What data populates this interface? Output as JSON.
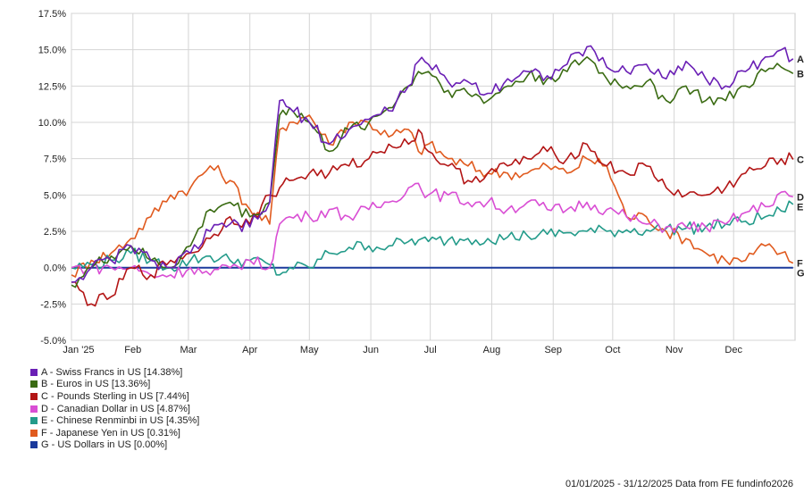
{
  "chart_data": {
    "type": "line",
    "y_ticks": [
      "17.5%",
      "15.0%",
      "12.5%",
      "10.0%",
      "7.5%",
      "5.0%",
      "2.5%",
      "0.0%",
      "-2.5%",
      "-5.0%"
    ],
    "ylim": [
      -5,
      17.5
    ],
    "x_ticks": [
      "Jan '25",
      "Feb",
      "Mar",
      "Apr",
      "May",
      "Jun",
      "Jul",
      "Aug",
      "Sep",
      "Oct",
      "Nov",
      "Dec"
    ],
    "xlim": [
      0,
      365
    ],
    "grid": true,
    "series": [
      {
        "code": "A",
        "name": "A - Swiss Francs in US [14.38%]",
        "color": "#6a1fb5",
        "x": [
          0,
          10,
          20,
          30,
          40,
          50,
          60,
          70,
          80,
          90,
          100,
          105,
          110,
          120,
          130,
          140,
          150,
          160,
          170,
          175,
          180,
          190,
          200,
          210,
          220,
          230,
          240,
          250,
          260,
          270,
          280,
          290,
          300,
          310,
          320,
          330,
          340,
          350,
          358,
          364
        ],
        "values": [
          -1.0,
          0.0,
          0.5,
          1.5,
          0.5,
          0.0,
          1.0,
          2.5,
          3.0,
          2.8,
          4.5,
          11.5,
          11.0,
          10.0,
          8.5,
          9.5,
          10.2,
          10.8,
          12.5,
          14.2,
          14.0,
          12.8,
          12.8,
          12.0,
          13.0,
          13.5,
          13.2,
          14.0,
          15.2,
          13.8,
          13.5,
          14.0,
          13.0,
          14.2,
          13.0,
          12.5,
          13.5,
          14.5,
          15.0,
          14.38
        ]
      },
      {
        "code": "B",
        "name": "B - Euros in US [13.36%]",
        "color": "#3a6b12",
        "x": [
          0,
          10,
          20,
          30,
          40,
          50,
          60,
          70,
          80,
          90,
          100,
          105,
          110,
          120,
          130,
          140,
          150,
          160,
          170,
          175,
          180,
          190,
          200,
          210,
          220,
          230,
          240,
          250,
          260,
          270,
          280,
          290,
          300,
          310,
          320,
          330,
          340,
          350,
          358,
          364
        ],
        "values": [
          -1.2,
          0.0,
          0.8,
          1.5,
          0.5,
          0.0,
          1.5,
          4.0,
          4.5,
          3.5,
          4.5,
          10.5,
          11.0,
          10.0,
          8.0,
          9.5,
          10.0,
          11.0,
          12.5,
          13.5,
          13.5,
          12.2,
          12.0,
          11.5,
          12.5,
          13.2,
          13.0,
          13.5,
          14.5,
          13.0,
          12.5,
          12.8,
          11.5,
          12.5,
          11.5,
          11.5,
          12.5,
          13.5,
          13.8,
          13.36
        ]
      },
      {
        "code": "C",
        "name": "C - Pounds Sterling in US [7.44%]",
        "color": "#b31515",
        "x": [
          0,
          10,
          20,
          30,
          40,
          50,
          60,
          70,
          80,
          90,
          100,
          105,
          110,
          120,
          130,
          140,
          150,
          160,
          170,
          175,
          180,
          190,
          200,
          210,
          220,
          230,
          240,
          250,
          260,
          270,
          280,
          290,
          300,
          310,
          320,
          330,
          340,
          350,
          358,
          364
        ],
        "values": [
          -1.0,
          -2.5,
          -2.0,
          0.0,
          -0.5,
          0.5,
          1.0,
          2.0,
          3.5,
          3.0,
          5.0,
          5.5,
          6.0,
          6.5,
          6.5,
          7.0,
          7.5,
          8.5,
          8.5,
          9.5,
          8.0,
          7.0,
          6.0,
          6.5,
          7.0,
          7.5,
          8.0,
          7.5,
          8.5,
          7.0,
          6.5,
          7.0,
          5.5,
          5.0,
          5.0,
          5.5,
          6.5,
          7.0,
          7.5,
          7.44
        ]
      },
      {
        "code": "D",
        "name": "D - Canadian Dollar in US [4.87%]",
        "color": "#d94ed4",
        "x": [
          0,
          10,
          20,
          30,
          40,
          50,
          60,
          70,
          80,
          90,
          100,
          105,
          110,
          120,
          130,
          140,
          150,
          160,
          170,
          175,
          180,
          190,
          200,
          210,
          220,
          230,
          240,
          250,
          260,
          270,
          280,
          290,
          300,
          310,
          320,
          330,
          340,
          350,
          358,
          364
        ],
        "values": [
          0.0,
          0.0,
          0.0,
          0.0,
          -0.5,
          -0.5,
          0.0,
          -0.5,
          0.0,
          0.5,
          0.0,
          3.0,
          3.5,
          3.5,
          4.0,
          3.5,
          4.0,
          4.5,
          5.5,
          5.8,
          5.0,
          5.0,
          4.5,
          4.5,
          4.0,
          4.5,
          4.0,
          4.0,
          4.5,
          4.0,
          3.5,
          3.0,
          2.8,
          2.8,
          2.8,
          3.0,
          3.8,
          4.2,
          5.2,
          4.87
        ]
      },
      {
        "code": "E",
        "name": "E - Chinese Renminbi in US [4.35%]",
        "color": "#239b8a",
        "x": [
          0,
          10,
          20,
          30,
          40,
          50,
          60,
          70,
          80,
          90,
          100,
          105,
          110,
          120,
          130,
          140,
          150,
          160,
          170,
          175,
          180,
          190,
          200,
          210,
          220,
          230,
          240,
          250,
          260,
          270,
          280,
          290,
          300,
          310,
          320,
          330,
          340,
          350,
          358,
          364
        ],
        "values": [
          0.0,
          0.2,
          0.5,
          1.0,
          0.5,
          0.0,
          0.5,
          0.8,
          0.5,
          0.5,
          0.2,
          -0.5,
          0.0,
          0.0,
          1.0,
          1.4,
          1.5,
          1.5,
          1.8,
          1.9,
          1.8,
          1.9,
          2.0,
          2.0,
          2.1,
          2.2,
          2.3,
          2.4,
          2.5,
          2.5,
          2.6,
          2.6,
          2.7,
          2.7,
          2.8,
          3.0,
          3.2,
          3.5,
          3.9,
          4.35
        ]
      },
      {
        "code": "F",
        "name": "F - Japanese Yen in US [0.31%]",
        "color": "#e05a1e",
        "x": [
          0,
          10,
          20,
          30,
          40,
          50,
          60,
          70,
          80,
          90,
          100,
          105,
          110,
          120,
          130,
          140,
          150,
          160,
          170,
          175,
          180,
          190,
          200,
          210,
          220,
          230,
          240,
          250,
          260,
          270,
          280,
          290,
          300,
          310,
          320,
          330,
          340,
          350,
          358,
          364
        ],
        "values": [
          -0.5,
          0.5,
          1.0,
          2.0,
          3.5,
          5.0,
          5.5,
          7.0,
          6.0,
          4.0,
          3.0,
          9.5,
          10.0,
          10.5,
          8.5,
          10.0,
          10.0,
          9.0,
          9.5,
          8.0,
          8.5,
          7.5,
          7.0,
          6.5,
          6.5,
          6.5,
          7.0,
          6.5,
          7.5,
          7.0,
          3.5,
          3.5,
          2.5,
          2.0,
          1.0,
          0.5,
          0.5,
          1.5,
          1.0,
          0.31
        ]
      },
      {
        "code": "G",
        "name": "G - US Dollars in US [0.00%]",
        "color": "#1b3a9c",
        "x": [
          0,
          364
        ],
        "values": [
          0.0,
          0.0
        ]
      }
    ]
  },
  "footer": {
    "text": "01/01/2025 - 31/12/2025 Data from FE fundinfo2026"
  }
}
